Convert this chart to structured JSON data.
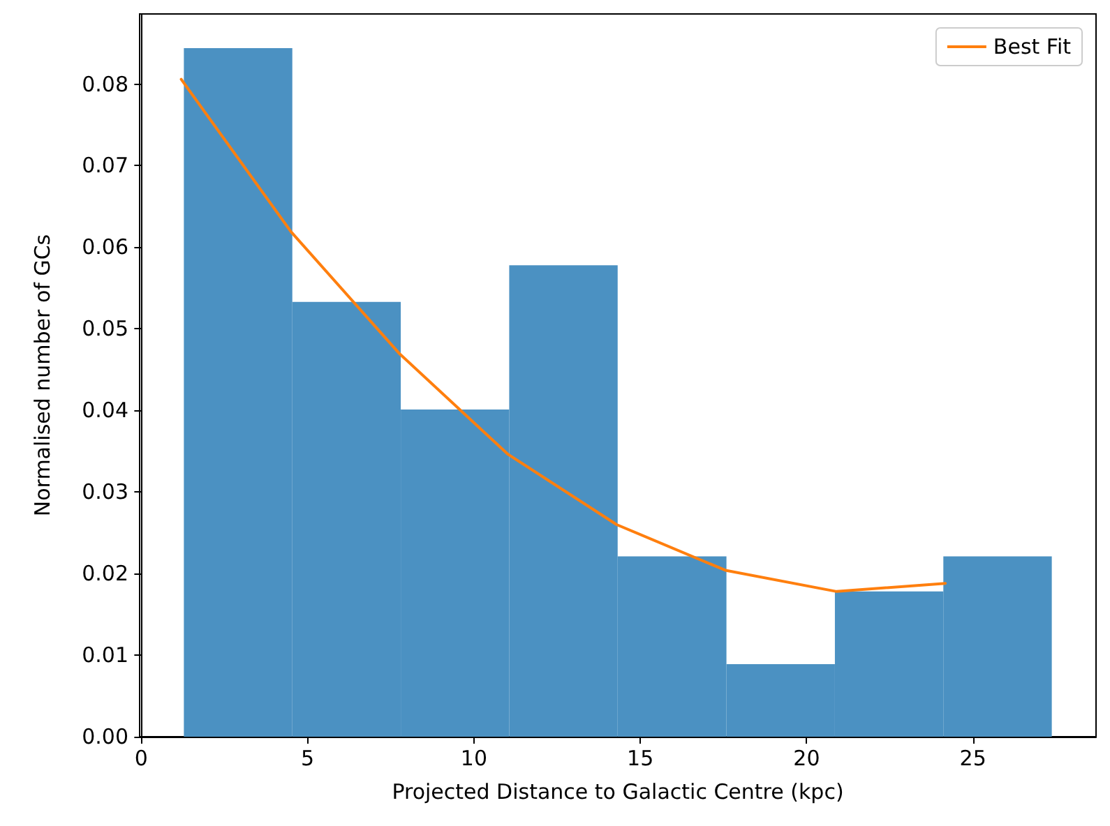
{
  "chart_data": {
    "type": "histogram",
    "xlabel": "Projected Distance to Galactic Centre (kpc)",
    "ylabel": "Normalised number of GCs",
    "bins": [
      1.28,
      4.54,
      7.8,
      11.06,
      14.32,
      17.59,
      20.85,
      24.11,
      27.37
    ],
    "values": [
      0.0844,
      0.0533,
      0.0401,
      0.0578,
      0.0221,
      0.0089,
      0.0178,
      0.0221
    ],
    "color": "#4b91c2",
    "series": [
      {
        "type": "line",
        "name": "Best Fit",
        "color": "#ff7f0e",
        "x": [
          1.2,
          4.5,
          7.75,
          11.03,
          14.29,
          17.56,
          20.9,
          24.17
        ],
        "values": [
          0.0806,
          0.0619,
          0.047,
          0.0346,
          0.026,
          0.0204,
          0.0178,
          0.0188
        ]
      }
    ],
    "xlim": [
      -0.05,
      28.7
    ],
    "ylim": [
      0,
      0.0886
    ],
    "xticks": [
      0,
      5,
      10,
      15,
      20,
      25
    ],
    "yticks": [
      {
        "value": 0,
        "label": "0.00"
      },
      {
        "value": 0.01,
        "label": "0.01"
      },
      {
        "value": 0.02,
        "label": "0.02"
      },
      {
        "value": 0.03,
        "label": "0.03"
      },
      {
        "value": 0.04,
        "label": "0.04"
      },
      {
        "value": 0.05,
        "label": "0.05"
      },
      {
        "value": 0.06,
        "label": "0.06"
      },
      {
        "value": 0.07,
        "label": "0.07"
      },
      {
        "value": 0.08,
        "label": "0.08"
      }
    ],
    "legend": "top right",
    "grid": false,
    "marker": "none",
    "line_style": "solid"
  }
}
